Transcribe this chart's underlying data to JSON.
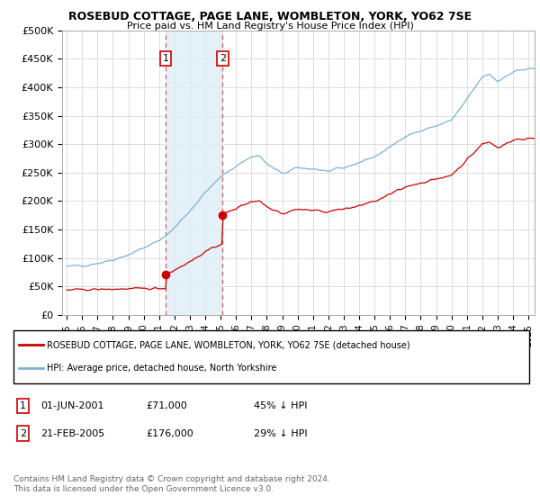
{
  "title": "ROSEBUD COTTAGE, PAGE LANE, WOMBLETON, YORK, YO62 7SE",
  "subtitle": "Price paid vs. HM Land Registry's House Price Index (HPI)",
  "legend_line1": "ROSEBUD COTTAGE, PAGE LANE, WOMBLETON, YORK, YO62 7SE (detached house)",
  "legend_line2": "HPI: Average price, detached house, North Yorkshire",
  "footnote": "Contains HM Land Registry data © Crown copyright and database right 2024.\nThis data is licensed under the Open Government Licence v3.0.",
  "transaction1_date": "01-JUN-2001",
  "transaction1_price": "£71,000",
  "transaction1_hpi": "45% ↓ HPI",
  "transaction2_date": "21-FEB-2005",
  "transaction2_price": "£176,000",
  "transaction2_hpi": "29% ↓ HPI",
  "sale1_year": 2001.42,
  "sale1_price": 71000,
  "sale2_year": 2005.13,
  "sale2_price": 176000,
  "hpi_color": "#7ab3d4",
  "sale_color": "#cc0000",
  "vline_color": "#e06060",
  "shade_color": "#deeef8",
  "ylim": [
    0,
    500000
  ],
  "yticks": [
    0,
    50000,
    100000,
    150000,
    200000,
    250000,
    300000,
    350000,
    400000,
    450000,
    500000
  ],
  "ytick_labels": [
    "£0",
    "£50K",
    "£100K",
    "£150K",
    "£200K",
    "£250K",
    "£300K",
    "£350K",
    "£400K",
    "£450K",
    "£500K"
  ],
  "xlim_start": 1994.7,
  "xlim_end": 2025.4
}
